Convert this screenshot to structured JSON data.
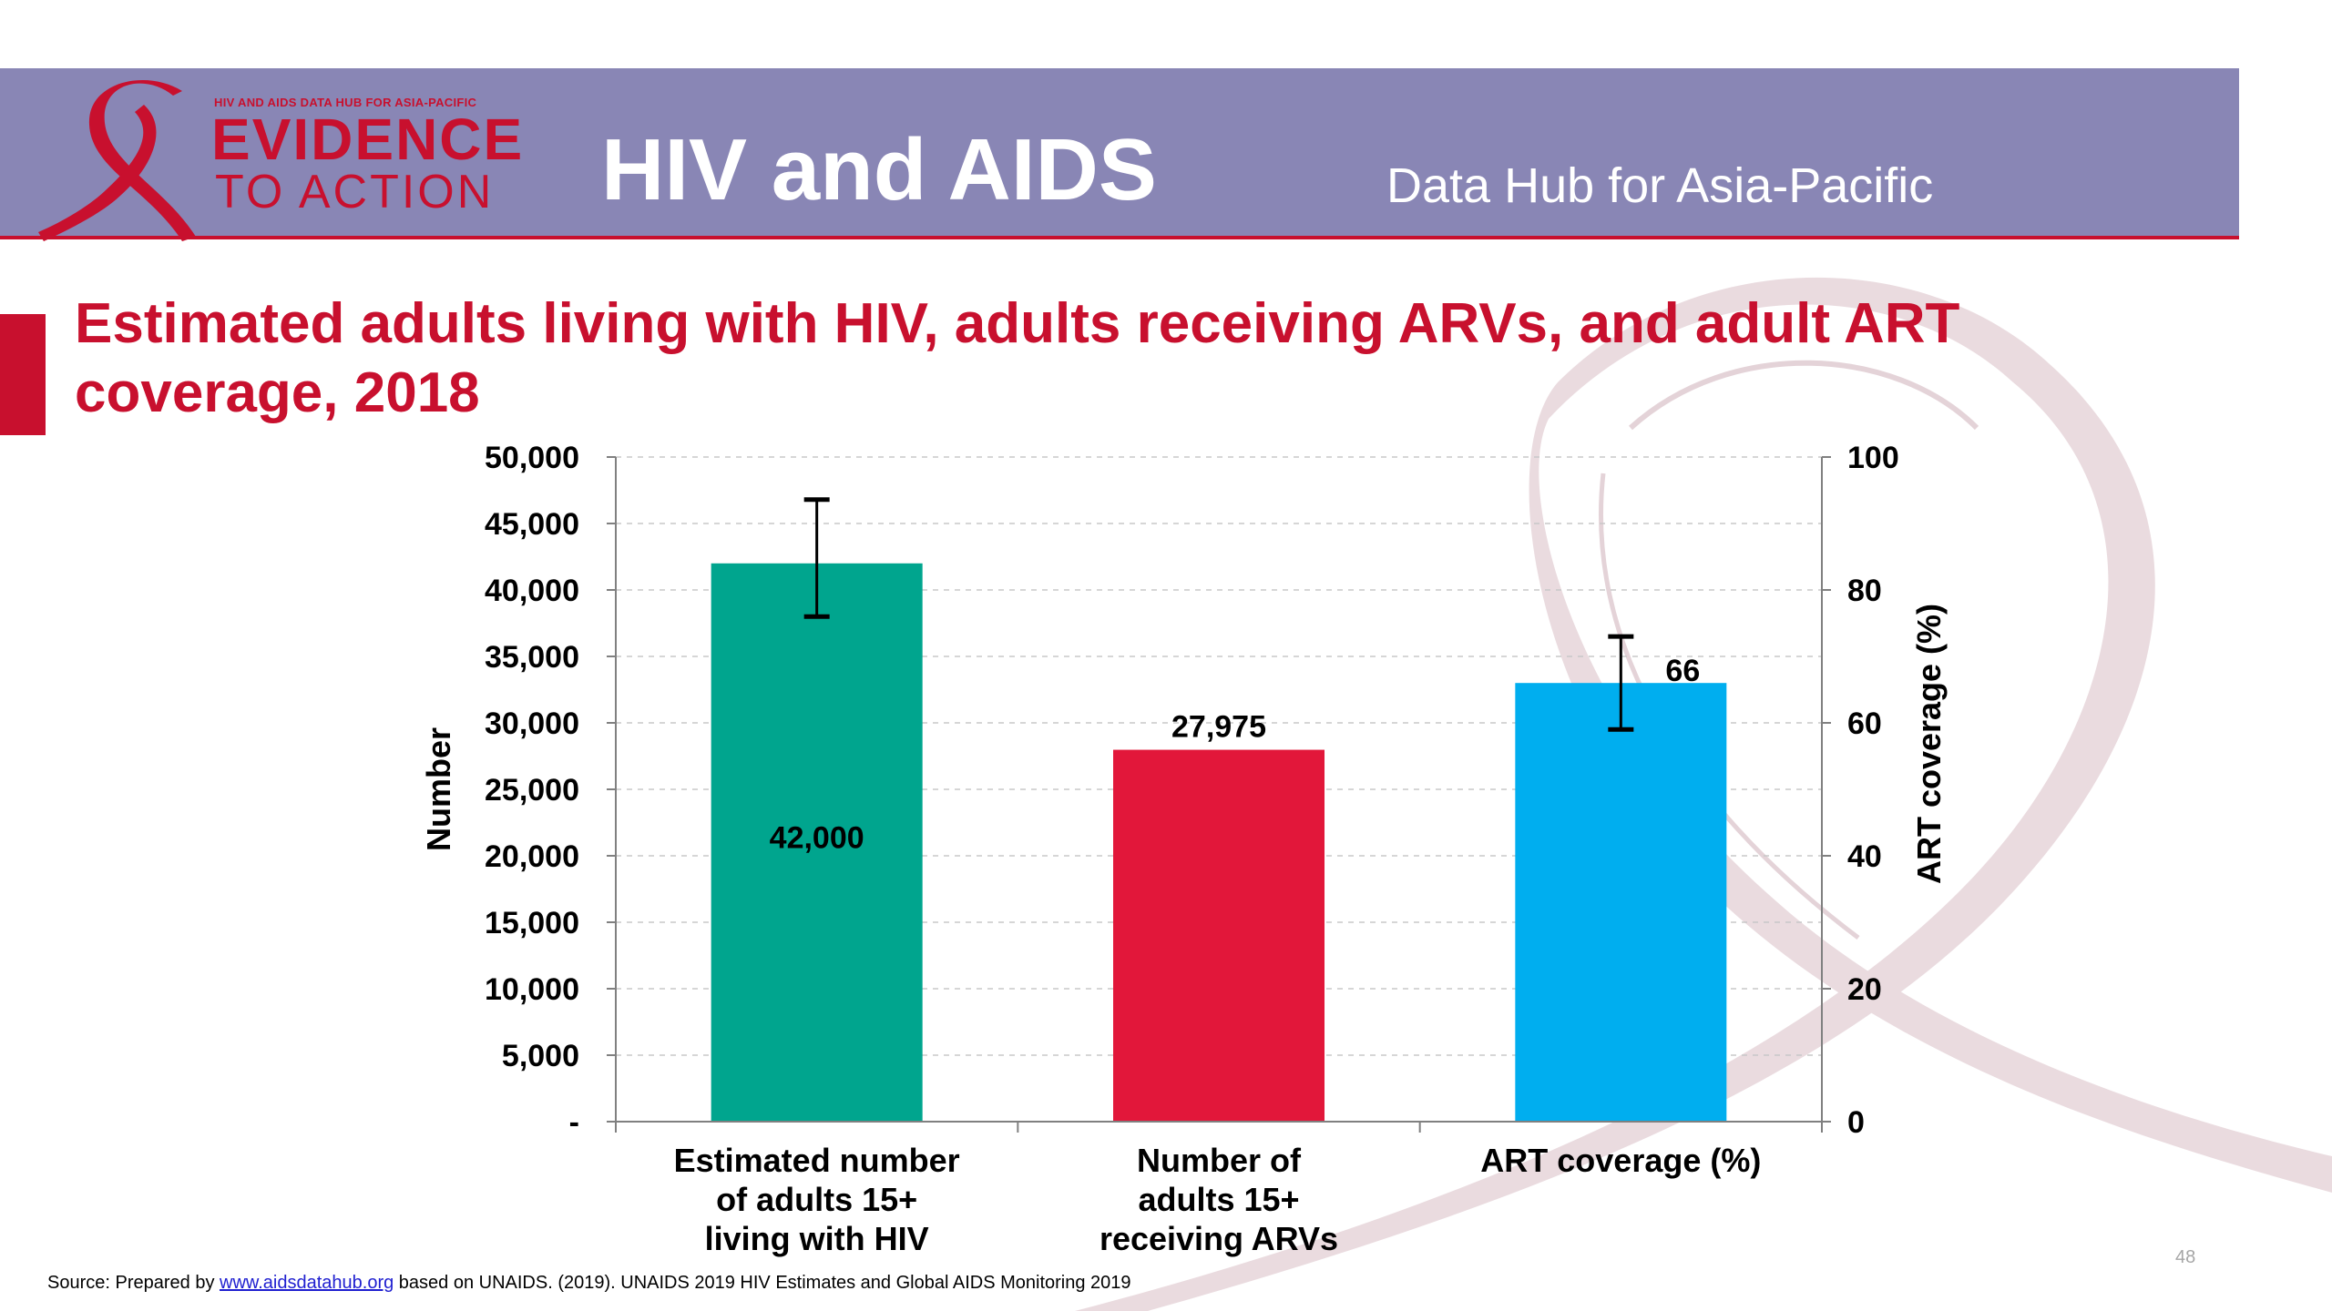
{
  "header": {
    "logo_small_text": "HIV AND AIDS DATA HUB FOR ASIA-PACIFIC",
    "logo_line1": "EVIDENCE",
    "logo_line2": "TO ACTION",
    "title": "HIV and AIDS",
    "subtitle": "Data Hub for Asia-Pacific"
  },
  "slide_title": "Estimated adults living with HIV, adults receiving ARVs, and adult ART coverage, 2018",
  "colors": {
    "header_band": "#8986b5",
    "accent_red": "#c8102e",
    "bar_teal": "#00a58e",
    "bar_red": "#e2173a",
    "bar_blue": "#00aeef",
    "ribbon_pink": "#e8d7dc"
  },
  "chart_data": {
    "type": "bar",
    "categories": [
      [
        "Estimated number",
        "of adults 15+",
        "living with HIV"
      ],
      [
        "Number of",
        "adults 15+",
        "receiving ARVs"
      ],
      [
        "ART coverage (%)"
      ]
    ],
    "series": [
      {
        "axis": "left",
        "category_index": 0,
        "value": 42000,
        "data_label": "42,000",
        "error_low": 38000,
        "error_high": 46800,
        "color": "#00a58e"
      },
      {
        "axis": "left",
        "category_index": 1,
        "value": 27975,
        "data_label": "27,975",
        "color": "#e2173a"
      },
      {
        "axis": "right",
        "category_index": 2,
        "value": 66,
        "data_label": "66",
        "error_low": 59,
        "error_high": 73,
        "color": "#00aeef"
      }
    ],
    "y_left": {
      "label": "Number",
      "ylim": [
        0,
        50000
      ],
      "ticks": [
        0,
        5000,
        10000,
        15000,
        20000,
        25000,
        30000,
        35000,
        40000,
        45000,
        50000
      ],
      "tick_labels": [
        "-",
        "5,000",
        "10,000",
        "15,000",
        "20,000",
        "25,000",
        "30,000",
        "35,000",
        "40,000",
        "45,000",
        "50,000"
      ]
    },
    "y_right": {
      "label": "ART coverage (%)",
      "ylim": [
        0,
        100
      ],
      "ticks": [
        0,
        20,
        40,
        60,
        80,
        100
      ],
      "tick_labels": [
        "0",
        "20",
        "40",
        "60",
        "80",
        "100"
      ]
    },
    "grid": true,
    "legend": "none"
  },
  "source": {
    "prefix": "Source: Prepared by",
    "link_text": "www.aidsdatahub.org",
    "suffix": "based on UNAIDS. (2019). UNAIDS 2019 HIV Estimates and Global AIDS Monitoring 2019"
  },
  "page_number": "48"
}
